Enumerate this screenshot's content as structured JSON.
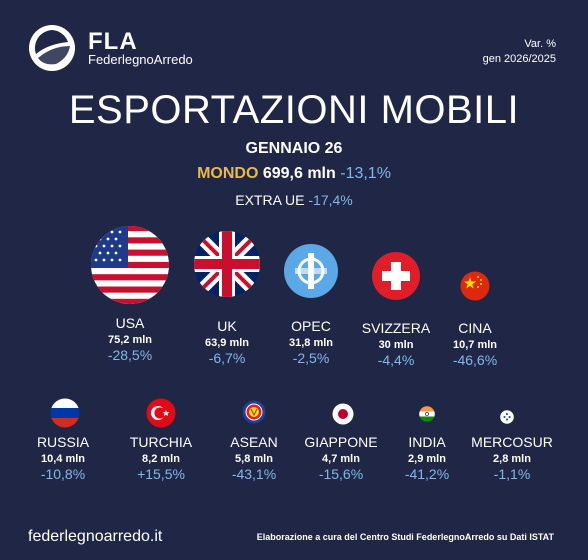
{
  "brand": {
    "short": "FLA",
    "name": "FederlegnoArredo"
  },
  "variation": {
    "label": "Var. %",
    "period": "gen 2026/2025"
  },
  "title": "ESPORTAZIONI MOBILI",
  "subtitle": "GENNAIO 26",
  "world": {
    "label": "MONDO",
    "value": "699,6 mln",
    "pct": "-13,1%"
  },
  "extra_ue": {
    "label": "EXTRA UE",
    "pct": "-17,4%"
  },
  "countries_row1": [
    {
      "name": "USA",
      "value": "75,2 mln",
      "pct": "-28,5%"
    },
    {
      "name": "UK",
      "value": "63,9 mln",
      "pct": "-6,7%"
    },
    {
      "name": "OPEC",
      "value": "31,8 mln",
      "pct": "-2,5%"
    },
    {
      "name": "SVIZZERA",
      "value": "30 mln",
      "pct": "-4,4%"
    },
    {
      "name": "CINA",
      "value": "10,7 mln",
      "pct": "-46,6%"
    }
  ],
  "countries_row2": [
    {
      "name": "RUSSIA",
      "value": "10,4 mln",
      "pct": "-10,8%"
    },
    {
      "name": "TURCHIA",
      "value": "8,2 mln",
      "pct": "+15,5%"
    },
    {
      "name": "ASEAN",
      "value": "5,8 mln",
      "pct": "-43,1%"
    },
    {
      "name": "GIAPPONE",
      "value": "4,7 mln",
      "pct": "-15,6%"
    },
    {
      "name": "INDIA",
      "value": "2,9 mln",
      "pct": "-41,2%"
    },
    {
      "name": "MERCOSUR",
      "value": "2,8 mln",
      "pct": "-1,1%"
    }
  ],
  "footer": {
    "url": "federlegnoarredo.it",
    "note": "Elaborazione a cura del Centro Studi FederlegnoArredo su Dati ISTAT"
  },
  "colors": {
    "background": "#202746",
    "accent_gold": "#e9b949",
    "pct_blue": "#80b8e8"
  }
}
